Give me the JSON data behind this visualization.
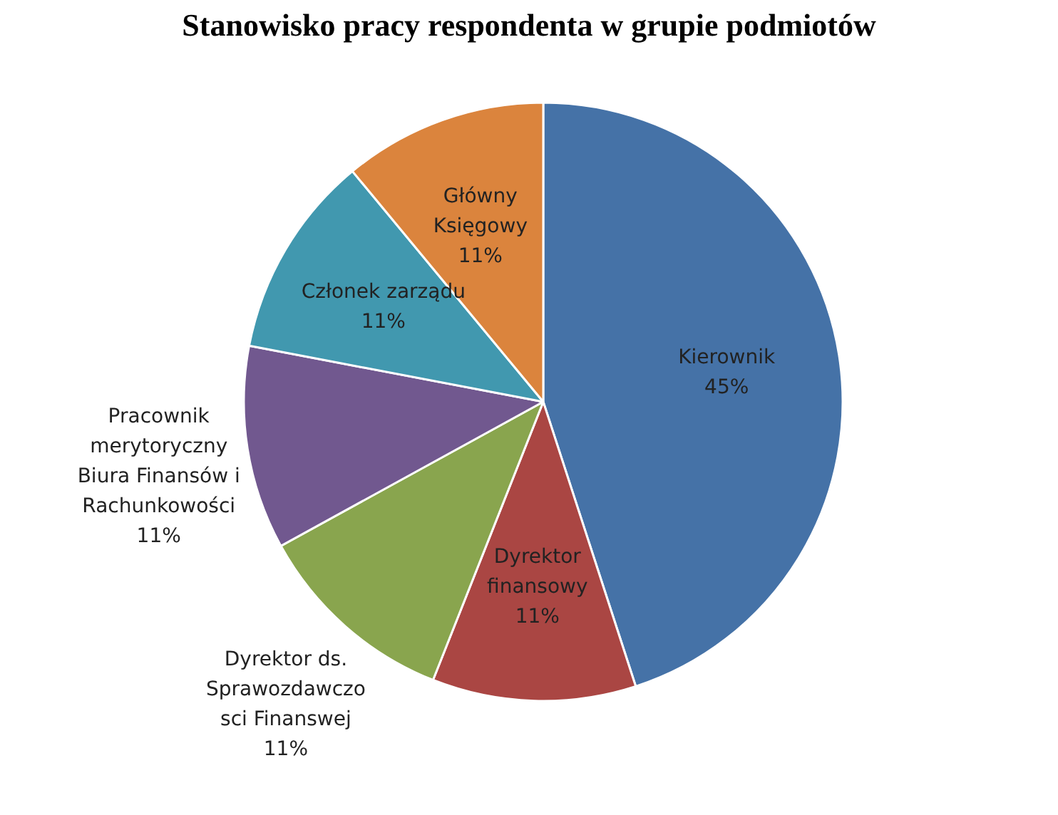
{
  "chart_data": {
    "type": "pie",
    "title": "Stanowisko pracy respondenta w grupie podmiotów",
    "categories": [
      "Kierownik",
      "Dyrektor finansowy",
      "Dyrektor ds. Sprawozdawczo sci Finanswej",
      "Pracownik merytoryczny Biura Finansów i Rachunkowości",
      "Członek zarządu",
      "Główny Księgowy"
    ],
    "values": [
      45,
      11,
      11,
      11,
      11,
      11
    ],
    "value_labels": [
      "45%",
      "11%",
      "11%",
      "11%",
      "11%",
      "11%"
    ],
    "colors": [
      "#4572a7",
      "#aa4643",
      "#89a54e",
      "#71588f",
      "#4198af",
      "#db843d"
    ],
    "legend": false
  }
}
